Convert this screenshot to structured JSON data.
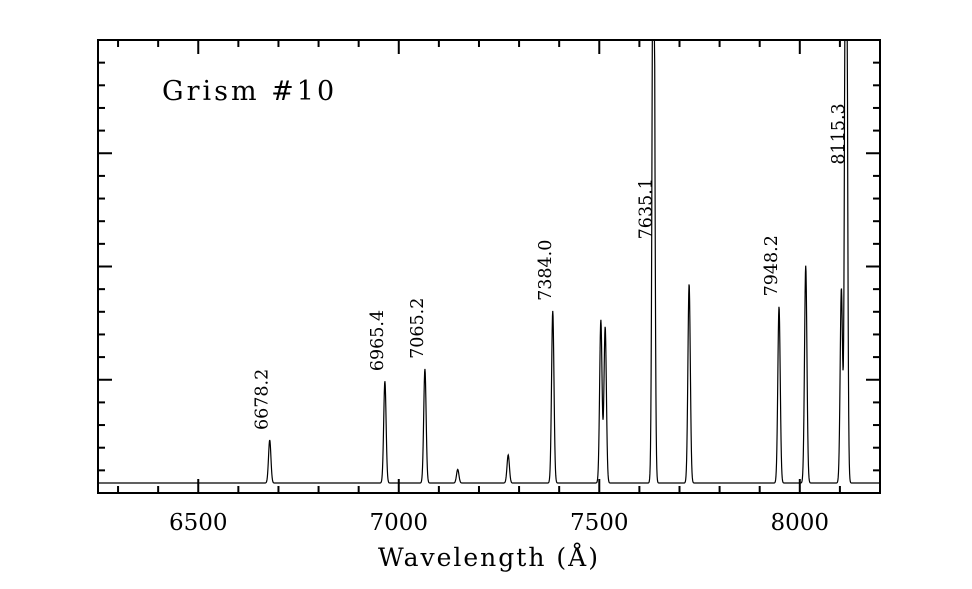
{
  "chart_data": {
    "type": "line",
    "title": "Grism #10",
    "xlabel": "Wavelength (Å)",
    "ylabel": "",
    "x_range": [
      6250,
      8200
    ],
    "y_range": [
      0,
      1
    ],
    "x_major_ticks": [
      6500,
      7000,
      7500,
      8000
    ],
    "x_minor_step": 100,
    "y_major_step": 0.25,
    "y_minor_step": 0.05,
    "grid": false,
    "legend": "none",
    "background": "#ffffff",
    "frame_color": "#000000",
    "trace_color": "#000000",
    "continuum_level": 0.022,
    "line_sigma_angstrom": 3.0,
    "spectral_lines": [
      {
        "wavelength": 6678.2,
        "amplitude": 0.095,
        "label": "6678.2"
      },
      {
        "wavelength": 6965.4,
        "amplitude": 0.225,
        "label": "6965.4"
      },
      {
        "wavelength": 7065.2,
        "amplitude": 0.252,
        "label": "7065.2"
      },
      {
        "wavelength": 7147.0,
        "amplitude": 0.03
      },
      {
        "wavelength": 7272.9,
        "amplitude": 0.062
      },
      {
        "wavelength": 7384.0,
        "amplitude": 0.38,
        "label": "7384.0"
      },
      {
        "wavelength": 7503.9,
        "amplitude": 0.36
      },
      {
        "wavelength": 7514.7,
        "amplitude": 0.345
      },
      {
        "wavelength": 7635.1,
        "amplitude": 1.6,
        "label": "7635.1",
        "clipped": true,
        "label_y": 0.56
      },
      {
        "wavelength": 7724.0,
        "amplitude": 0.44
      },
      {
        "wavelength": 7948.2,
        "amplitude": 0.39,
        "label": "7948.2"
      },
      {
        "wavelength": 8014.8,
        "amplitude": 0.48
      },
      {
        "wavelength": 8103.7,
        "amplitude": 0.43
      },
      {
        "wavelength": 8115.3,
        "amplitude": 1.8,
        "label": "8115.3",
        "clipped": true,
        "label_y": 0.725
      }
    ]
  }
}
